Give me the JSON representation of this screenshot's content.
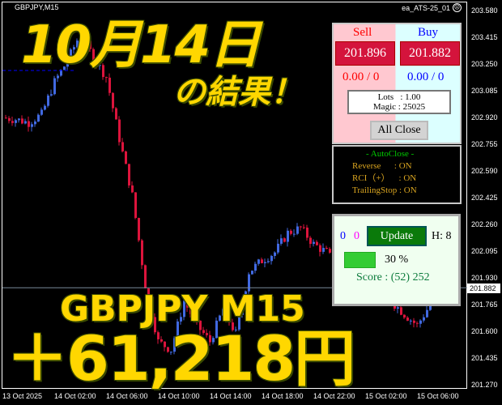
{
  "chart": {
    "symbol": "GBPJPY,M15",
    "ea_name": "ea_ATS-25_01",
    "status_icon": "frown-face-icon",
    "price_ticks": [
      "203.580",
      "203.415",
      "203.250",
      "203.085",
      "202.920",
      "202.755",
      "202.590",
      "202.425",
      "202.260",
      "202.095",
      "201.930",
      "201.765",
      "201.600",
      "201.435",
      "201.270"
    ],
    "current_price": "201.882",
    "time_ticks": [
      "13 Oct 2025",
      "14 Oct 02:00",
      "14 Oct 06:00",
      "14 Oct 10:00",
      "14 Oct 14:00",
      "14 Oct 18:00",
      "14 Oct 22:00",
      "15 Oct 02:00",
      "15 Oct 06:00"
    ],
    "hourly_closes": [
      202.93,
      202.92,
      202.9,
      202.95,
      203.15,
      203.28,
      203.45,
      203.3,
      203.18,
      202.8,
      202.45,
      201.9,
      201.55,
      201.5,
      201.8,
      201.65,
      201.55,
      201.75,
      201.6,
      201.98,
      202.05,
      202.1,
      202.22,
      202.25,
      202.15,
      202.1,
      202.0,
      201.95,
      201.9,
      201.85,
      201.8,
      201.72,
      201.65,
      201.78,
      201.88
    ],
    "colors": {
      "bull": "#4169E1",
      "bear": "#DC143C"
    }
  },
  "overlay": {
    "date": "10月14日",
    "subtitle": "の結果！",
    "pair": "GBPJPY M15",
    "profit": "＋61,218円"
  },
  "trade_panel": {
    "sell_label": "Sell",
    "buy_label": "Buy",
    "sell_price": "201.896",
    "buy_price": "201.882",
    "sell_pl": "0.00 / 0",
    "buy_pl": "0.00 / 0",
    "lots": "Lots   : 1.00",
    "magic": "Magic : 25025",
    "all_close": "All Close"
  },
  "autoclose": {
    "title": "- AutoClose -",
    "rows": [
      "Reverse      : ON",
      "RCI（+）    : ON",
      "TrailingStop : ON"
    ]
  },
  "score_panel": {
    "count_blue": "0",
    "count_magenta": "0",
    "update": "Update",
    "h": "H: 8",
    "progress_label": "30 %",
    "progress": 30,
    "score": "Score : (52) 252"
  }
}
